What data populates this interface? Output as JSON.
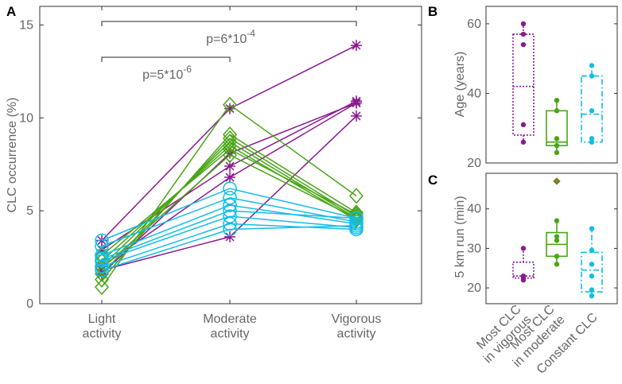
{
  "figure": {
    "colors": {
      "purple": "#8b1a8f",
      "green": "#4aa516",
      "cyan": "#12bde6",
      "axis": "#333333",
      "text": "#666666"
    }
  },
  "chart_data": [
    {
      "panel": "A",
      "type": "line",
      "xlabel": "",
      "ylabel": "CLC occurrence (%)",
      "ylim": [
        0,
        16
      ],
      "yticks": [
        "0",
        "5",
        "10",
        "15"
      ],
      "yticks_values": [
        0,
        5,
        10,
        15
      ],
      "categories": [
        "Light\nactivity",
        "Moderate\nactivity",
        "Vigorous\nactivity"
      ],
      "series": [
        {
          "name": "Most CLC in vigorous",
          "color": "#8b1a8f",
          "marker": "asterisk",
          "lines": [
            [
              3.4,
              10.5,
              13.9
            ],
            [
              2.9,
              7.4,
              10.9
            ],
            [
              2.0,
              6.8,
              10.8
            ],
            [
              1.8,
              3.6,
              10.1
            ],
            [
              1.6,
              8.1,
              10.8
            ]
          ]
        },
        {
          "name": "Most CLC in moderate",
          "color": "#4aa516",
          "marker": "diamond",
          "lines": [
            [
              0.9,
              10.7,
              5.8
            ],
            [
              1.3,
              9.1,
              4.9
            ],
            [
              1.6,
              8.9,
              4.7
            ],
            [
              2.0,
              8.7,
              4.6
            ],
            [
              2.3,
              8.5,
              4.5
            ],
            [
              2.6,
              8.3,
              4.8
            ],
            [
              1.9,
              8.0,
              4.6
            ]
          ]
        },
        {
          "name": "Constant CLC",
          "color": "#12bde6",
          "marker": "circle",
          "lines": [
            [
              3.4,
              6.2,
              4.6
            ],
            [
              3.1,
              5.7,
              4.4
            ],
            [
              2.6,
              5.3,
              4.3
            ],
            [
              2.4,
              5.0,
              4.6
            ],
            [
              2.3,
              4.7,
              4.1
            ],
            [
              2.0,
              4.3,
              4.0
            ],
            [
              1.8,
              4.0,
              4.2
            ]
          ]
        }
      ],
      "annotations": [
        {
          "text": "p=5*10",
          "exp": "-6",
          "from": "Light\nactivity",
          "to": "Moderate\nactivity"
        },
        {
          "text": "p=6*10",
          "exp": "-4",
          "from": "Light\nactivity",
          "to": "Vigorous\nactivity"
        }
      ]
    },
    {
      "panel": "B",
      "type": "box",
      "ylabel": "Age (years)",
      "ylim": [
        20,
        65
      ],
      "yticks": [
        "20",
        "40",
        "60"
      ],
      "yticks_values": [
        20,
        40,
        60
      ],
      "groups": [
        {
          "name": "Most CLC in vigorous",
          "color": "#8b1a8f",
          "style": "dotted",
          "q1": 28,
          "median": 42,
          "q3": 57,
          "min": 26,
          "max": 60,
          "points": [
            26,
            31,
            54,
            57,
            60
          ],
          "outliers": []
        },
        {
          "name": "Most CLC in moderate",
          "color": "#4aa516",
          "style": "solid",
          "q1": 25,
          "median": 26,
          "q3": 35,
          "min": 23,
          "max": 38,
          "points": [
            23,
            25,
            27,
            35,
            38
          ],
          "outliers": []
        },
        {
          "name": "Constant CLC",
          "color": "#12bde6",
          "style": "dashdot",
          "q1": 26,
          "median": 34,
          "q3": 45,
          "min": 26,
          "max": 48,
          "points": [
            26,
            27,
            35,
            45,
            48
          ],
          "outliers": []
        }
      ]
    },
    {
      "panel": "C",
      "type": "box",
      "ylabel": "5 km run (min)",
      "ylim": [
        16,
        49
      ],
      "yticks": [
        "20",
        "30",
        "40"
      ],
      "yticks_values": [
        20,
        30,
        40
      ],
      "categories": [
        "Most CLC\nin vigorous",
        "Most CLC\nin moderate",
        "Constant CLC"
      ],
      "groups": [
        {
          "name": "Most CLC in vigorous",
          "color": "#8b1a8f",
          "style": "dotted",
          "q1": 22.5,
          "median": 23,
          "q3": 26.5,
          "min": 22,
          "max": 30,
          "points": [
            22,
            22.5,
            23,
            30
          ],
          "outliers": []
        },
        {
          "name": "Most CLC in moderate",
          "color": "#4aa516",
          "style": "solid",
          "q1": 28,
          "median": 31,
          "q3": 34,
          "min": 26,
          "max": 37,
          "points": [
            26,
            28,
            32,
            33,
            37
          ],
          "outliers": [
            47
          ]
        },
        {
          "name": "Constant CLC",
          "color": "#12bde6",
          "style": "dashdot",
          "q1": 19,
          "median": 24.5,
          "q3": 29,
          "min": 18,
          "max": 35,
          "points": [
            18,
            19.5,
            23,
            26,
            29.5,
            35
          ],
          "outliers": []
        }
      ]
    }
  ]
}
